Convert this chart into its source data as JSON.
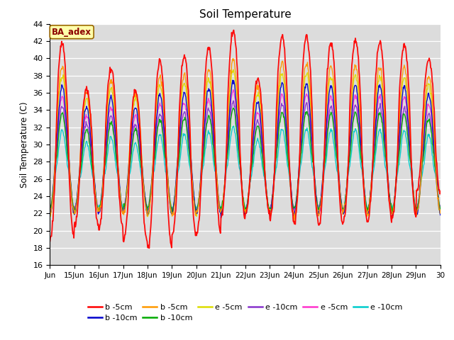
{
  "title": "Soil Temperature",
  "ylabel": "Soil Temperature (C)",
  "ylim": [
    16,
    44
  ],
  "yticks": [
    16,
    18,
    20,
    22,
    24,
    26,
    28,
    30,
    32,
    34,
    36,
    38,
    40,
    42,
    44
  ],
  "bg_color": "#dcdcdc",
  "annotation_text": "BA_adex",
  "annotation_color": "#8b0000",
  "annotation_bg": "#ffffaa",
  "legend_entries": [
    {
      "label": "b -5cm",
      "color": "#ff0000"
    },
    {
      "label": "b -10cm",
      "color": "#0000cc"
    },
    {
      "label": "b -5cm",
      "color": "#ff9900"
    },
    {
      "label": "b -10cm",
      "color": "#00aa00"
    },
    {
      "label": "e -5cm",
      "color": "#dddd00"
    },
    {
      "label": "e -10cm",
      "color": "#8833cc"
    },
    {
      "label": "e -5cm",
      "color": "#ff33cc"
    },
    {
      "label": "e -10cm",
      "color": "#00cccc"
    }
  ],
  "xtick_labels": [
    "Jun",
    "15Jun",
    "16Jun",
    "17Jun",
    "18Jun",
    "19Jun",
    "20Jun",
    "21Jun",
    "22Jun",
    "23Jun",
    "24Jun",
    "25Jun",
    "26Jun",
    "27Jun",
    "28Jun",
    "29Jun",
    "30"
  ],
  "red_peaks": [
    41.8,
    36.5,
    38.8,
    36.3,
    39.7,
    40.2,
    41.2,
    43.2,
    37.6,
    42.5,
    42.5,
    41.8,
    42.1,
    41.9,
    41.5,
    39.8
  ],
  "red_troughs": [
    19.0,
    20.5,
    20.3,
    18.7,
    18.0,
    19.5,
    19.7,
    21.5,
    22.0,
    21.3,
    21.0,
    20.5,
    21.0,
    21.2,
    21.5,
    24.5
  ],
  "num_days": 16,
  "points_per_day": 48
}
